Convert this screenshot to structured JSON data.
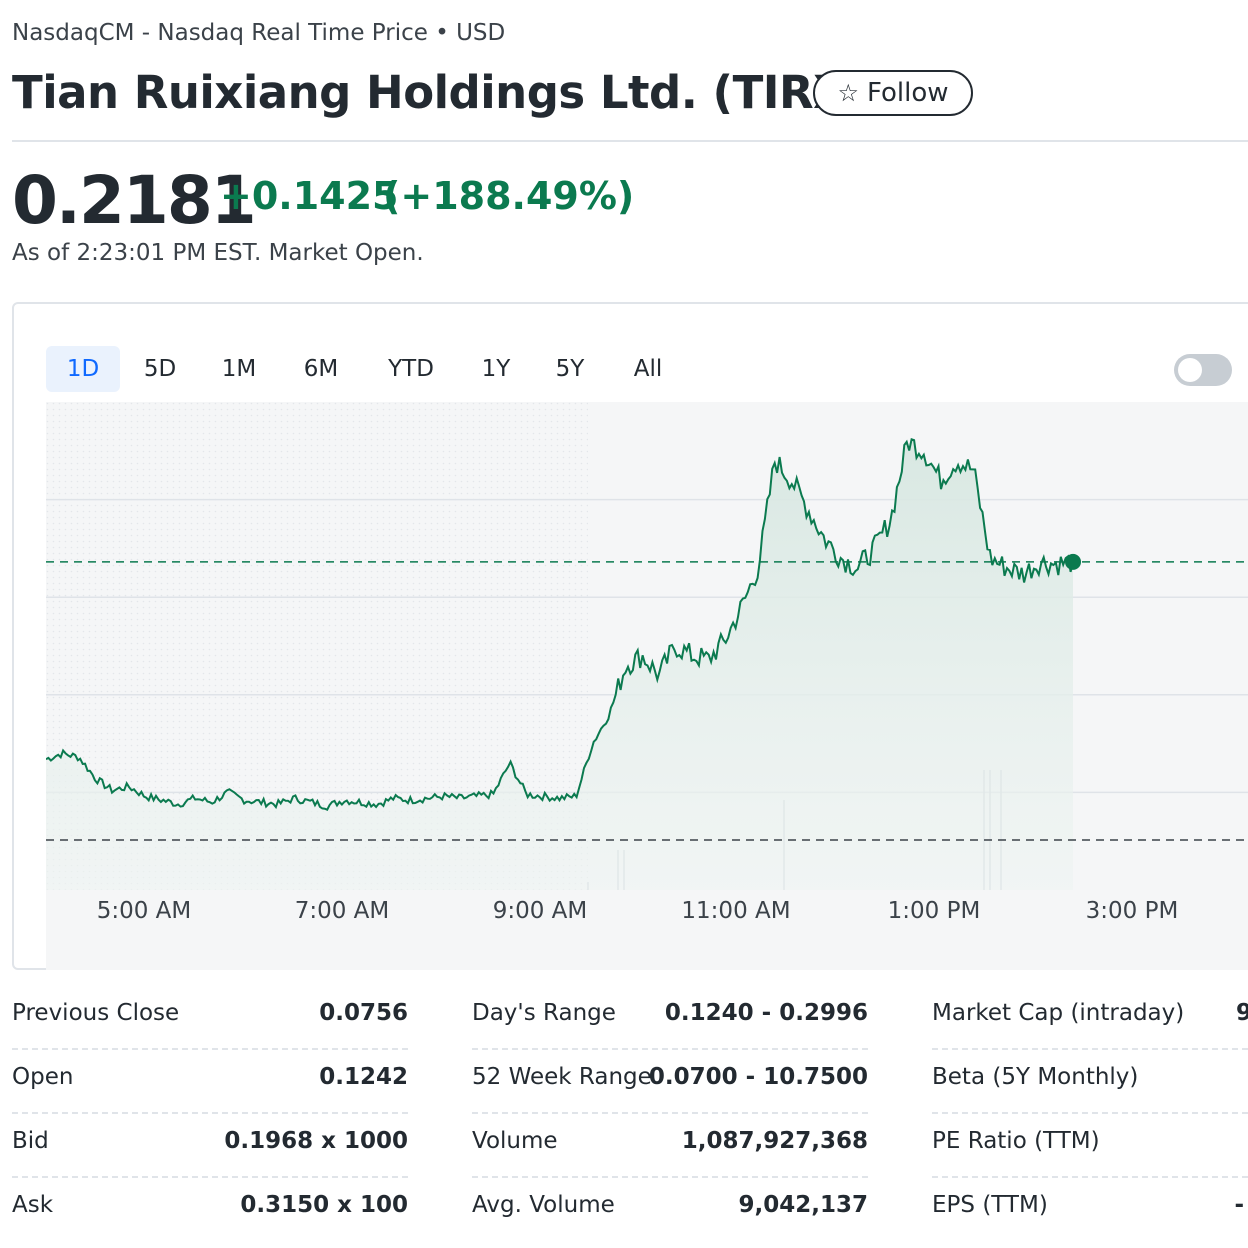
{
  "header": {
    "exchange_line": "NasdaqCM - Nasdaq Real Time Price • USD",
    "company_title": "Tian Ruixiang Holdings Ltd. (TIRX)",
    "follow_label": "Follow",
    "follow_icon": "star-outline-icon"
  },
  "quote": {
    "price": "0.2181",
    "change": "+0.1425",
    "change_percent": "(+188.49%)",
    "as_of": "As of 2:23:01 PM EST. Market Open.",
    "accent_color": "#0b7a4f"
  },
  "chart_controls": {
    "ranges": [
      "1D",
      "5D",
      "1M",
      "6M",
      "YTD",
      "1Y",
      "5Y",
      "All"
    ],
    "selected_range": "1D",
    "toggle_on": false
  },
  "chart_data": {
    "type": "area",
    "x_tick_labels": [
      "5:00 AM",
      "7:00 AM",
      "9:00 AM",
      "11:00 AM",
      "1:00 PM",
      "3:00 PM"
    ],
    "previous_close": 0.0756,
    "current": 0.2181,
    "series": [
      {
        "time": "4:00 AM",
        "values": [
          0.117,
          0.12,
          0.118
        ]
      },
      {
        "time": "4:30 AM",
        "values": [
          0.107,
          0.101,
          0.103
        ]
      },
      {
        "time": "5:00 AM",
        "values": [
          0.098,
          0.096,
          0.094
        ]
      },
      {
        "time": "5:30 AM",
        "values": [
          0.097,
          0.095,
          0.1
        ]
      },
      {
        "time": "6:00 AM",
        "values": [
          0.096,
          0.095,
          0.094
        ]
      },
      {
        "time": "6:30 AM",
        "values": [
          0.097,
          0.095,
          0.093
        ]
      },
      {
        "time": "7:00 AM",
        "values": [
          0.096,
          0.095,
          0.094
        ]
      },
      {
        "time": "7:30 AM",
        "values": [
          0.097,
          0.096,
          0.097
        ]
      },
      {
        "time": "8:00 AM",
        "values": [
          0.098,
          0.097,
          0.098
        ]
      },
      {
        "time": "8:30 AM",
        "values": [
          0.099,
          0.115,
          0.099
        ]
      },
      {
        "time": "9:00 AM",
        "values": [
          0.098,
          0.097,
          0.098
        ]
      },
      {
        "time": "9:30 AM",
        "values": [
          0.125,
          0.14,
          0.165
        ]
      },
      {
        "time": "10:00 AM",
        "values": [
          0.17,
          0.16,
          0.175
        ]
      },
      {
        "time": "10:30 AM",
        "values": [
          0.17,
          0.168,
          0.178
        ]
      },
      {
        "time": "11:00 AM",
        "values": [
          0.195,
          0.215,
          0.27
        ]
      },
      {
        "time": "11:30 AM",
        "values": [
          0.26,
          0.245,
          0.23
        ]
      },
      {
        "time": "12:00 PM",
        "values": [
          0.22,
          0.215,
          0.225
        ]
      },
      {
        "time": "12:30 PM",
        "values": [
          0.24,
          0.28,
          0.275
        ]
      },
      {
        "time": "1:00 PM",
        "values": [
          0.26,
          0.27,
          0.265
        ]
      },
      {
        "time": "1:30 PM",
        "values": [
          0.22,
          0.215,
          0.212
        ]
      },
      {
        "time": "2:00 PM",
        "values": [
          0.218,
          0.217,
          0.2181
        ]
      }
    ],
    "grid": true
  },
  "stats": {
    "col1": [
      {
        "label": "Previous Close",
        "value": "0.0756"
      },
      {
        "label": "Open",
        "value": "0.1242"
      },
      {
        "label": "Bid",
        "value": "0.1968 x 1000"
      },
      {
        "label": "Ask",
        "value": "0.3150 x 100"
      }
    ],
    "col2": [
      {
        "label": "Day's Range",
        "value": "0.1240 - 0.2996"
      },
      {
        "label": "52 Week Range",
        "value": "0.0700 - 10.7500"
      },
      {
        "label": "Volume",
        "value": "1,087,927,368"
      },
      {
        "label": "Avg. Volume",
        "value": "9,042,137"
      }
    ],
    "col3": [
      {
        "label": "Market Cap (intraday)",
        "value": "9"
      },
      {
        "label": "Beta (5Y Monthly)",
        "value": ""
      },
      {
        "label": "PE Ratio (TTM)",
        "value": ""
      },
      {
        "label": "EPS (TTM)",
        "value": "-"
      }
    ]
  }
}
